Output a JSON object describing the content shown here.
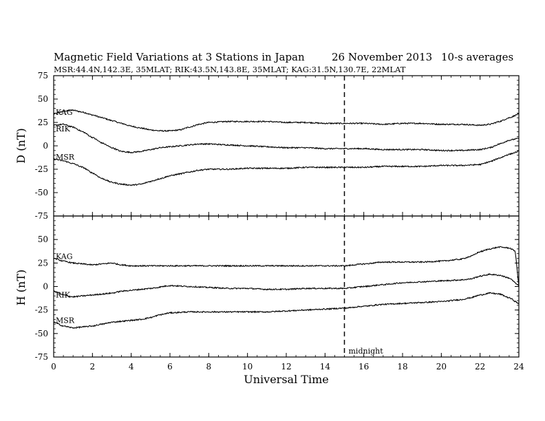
{
  "header": {
    "title": "Magnetic Field Variations at 3 Stations in Japan",
    "date": "26 November 2013",
    "averaging": "10-s averages",
    "stations_line": "MSR:44.4N,142.3E, 35MLAT;  RIK:43.5N,143.8E, 35MLAT;  KAG:31.5N,130.7E, 22MLAT"
  },
  "colors": {
    "line": "#000000",
    "frame": "#000000",
    "background": "#ffffff"
  },
  "chart_data": [
    {
      "type": "line",
      "panel": "D",
      "ylabel": "D (nT)",
      "xlabel": "",
      "xlim": [
        0,
        24
      ],
      "ylim": [
        -75,
        75
      ],
      "yticks": [
        -75,
        -50,
        -25,
        0,
        25,
        50,
        75
      ],
      "xticks": [
        0,
        2,
        4,
        6,
        8,
        10,
        12,
        14,
        16,
        18,
        20,
        22,
        24
      ],
      "grid": false,
      "series": [
        {
          "name": "KAG",
          "x": [
            0,
            0.5,
            1,
            1.5,
            2,
            2.5,
            3,
            3.5,
            4,
            4.5,
            5,
            5.5,
            6,
            6.5,
            7,
            7.5,
            8,
            9,
            10,
            11,
            12,
            13,
            14,
            15,
            16,
            17,
            18,
            19,
            20,
            21,
            22,
            22.5,
            23,
            23.5,
            24
          ],
          "values": [
            34,
            37,
            38,
            36,
            33,
            30,
            27,
            24,
            21,
            19,
            17,
            16,
            16,
            17,
            20,
            23,
            25,
            26,
            26,
            26,
            25,
            25,
            24,
            24,
            24,
            23,
            24,
            24,
            23,
            23,
            22,
            23,
            26,
            30,
            34
          ]
        },
        {
          "name": "RIK",
          "x": [
            0,
            0.5,
            1,
            1.5,
            2,
            2.5,
            3,
            3.5,
            4,
            4.5,
            5,
            5.5,
            6,
            6.5,
            7,
            7.5,
            8,
            9,
            10,
            11,
            12,
            13,
            14,
            15,
            16,
            17,
            18,
            19,
            20,
            21,
            22,
            22.5,
            23,
            23.5,
            24
          ],
          "values": [
            22,
            23,
            20,
            15,
            9,
            3,
            -2,
            -6,
            -7,
            -6,
            -4,
            -2,
            -1,
            0,
            1,
            2,
            2,
            1,
            0,
            -1,
            -2,
            -2,
            -3,
            -3,
            -3,
            -4,
            -4,
            -4,
            -5,
            -5,
            -4,
            -2,
            2,
            6,
            8
          ]
        },
        {
          "name": "MSR",
          "x": [
            0,
            0.5,
            1,
            1.5,
            2,
            2.5,
            3,
            3.5,
            4,
            4.5,
            5,
            5.5,
            6,
            6.5,
            7,
            7.5,
            8,
            9,
            10,
            11,
            12,
            13,
            14,
            15,
            16,
            17,
            18,
            19,
            20,
            21,
            22,
            22.5,
            23,
            23.5,
            24
          ],
          "values": [
            -14,
            -16,
            -19,
            -23,
            -29,
            -35,
            -39,
            -41,
            -42,
            -41,
            -38,
            -35,
            -32,
            -30,
            -28,
            -26,
            -25,
            -25,
            -24,
            -24,
            -24,
            -23,
            -23,
            -23,
            -23,
            -22,
            -22,
            -22,
            -21,
            -21,
            -20,
            -17,
            -13,
            -9,
            -6
          ]
        }
      ],
      "annotations": []
    },
    {
      "type": "line",
      "panel": "H",
      "ylabel": "H (nT)",
      "xlabel": "Universal Time",
      "xlim": [
        0,
        24
      ],
      "ylim": [
        -75,
        75
      ],
      "yticks": [
        -75,
        -50,
        -25,
        0,
        25,
        50
      ],
      "xticks": [
        0,
        2,
        4,
        6,
        8,
        10,
        12,
        14,
        16,
        18,
        20,
        22,
        24
      ],
      "grid": false,
      "series": [
        {
          "name": "KAG",
          "x": [
            0,
            0.5,
            1,
            1.5,
            2,
            2.5,
            3,
            3.5,
            4,
            4.5,
            5,
            6,
            7,
            8,
            9,
            10,
            11,
            12,
            13,
            14,
            15,
            16,
            17,
            18,
            19,
            20,
            21,
            21.5,
            22,
            22.5,
            23,
            23.5,
            23.8,
            24
          ],
          "values": [
            30,
            27,
            25,
            24,
            23,
            24,
            25,
            23,
            22,
            22,
            22,
            22,
            22,
            22,
            22,
            22,
            22,
            22,
            22,
            22,
            22,
            24,
            26,
            26,
            26,
            27,
            29,
            32,
            37,
            40,
            42,
            41,
            38,
            2
          ]
        },
        {
          "name": "RIK",
          "x": [
            0,
            0.5,
            1,
            1.5,
            2,
            2.5,
            3,
            3.5,
            4,
            4.5,
            5,
            6,
            7,
            8,
            9,
            10,
            11,
            12,
            13,
            14,
            15,
            16,
            17,
            18,
            19,
            20,
            21,
            21.5,
            22,
            22.5,
            23,
            23.5,
            24
          ],
          "values": [
            -5,
            -9,
            -11,
            -10,
            -9,
            -8,
            -7,
            -5,
            -4,
            -3,
            -2,
            1,
            0,
            -1,
            -2,
            -2,
            -3,
            -3,
            -2,
            -2,
            -2,
            0,
            2,
            4,
            5,
            6,
            7,
            8,
            11,
            13,
            12,
            9,
            1
          ]
        },
        {
          "name": "MSR",
          "x": [
            0,
            0.5,
            1,
            1.5,
            2,
            2.5,
            3,
            3.5,
            4,
            4.5,
            5,
            5.5,
            6,
            7,
            8,
            9,
            10,
            11,
            12,
            13,
            14,
            15,
            16,
            17,
            18,
            19,
            20,
            21,
            21.5,
            22,
            22.5,
            23,
            23.5,
            24
          ],
          "values": [
            -38,
            -42,
            -44,
            -43,
            -42,
            -40,
            -38,
            -37,
            -36,
            -35,
            -33,
            -30,
            -28,
            -27,
            -27,
            -27,
            -27,
            -27,
            -26,
            -25,
            -24,
            -23,
            -21,
            -19,
            -18,
            -17,
            -16,
            -14,
            -12,
            -9,
            -7,
            -8,
            -12,
            -18
          ]
        }
      ],
      "annotations": [
        {
          "text": "midnight",
          "x": 15
        }
      ]
    }
  ],
  "marker": {
    "x": 15,
    "style": "dashed",
    "label": "midnight"
  }
}
